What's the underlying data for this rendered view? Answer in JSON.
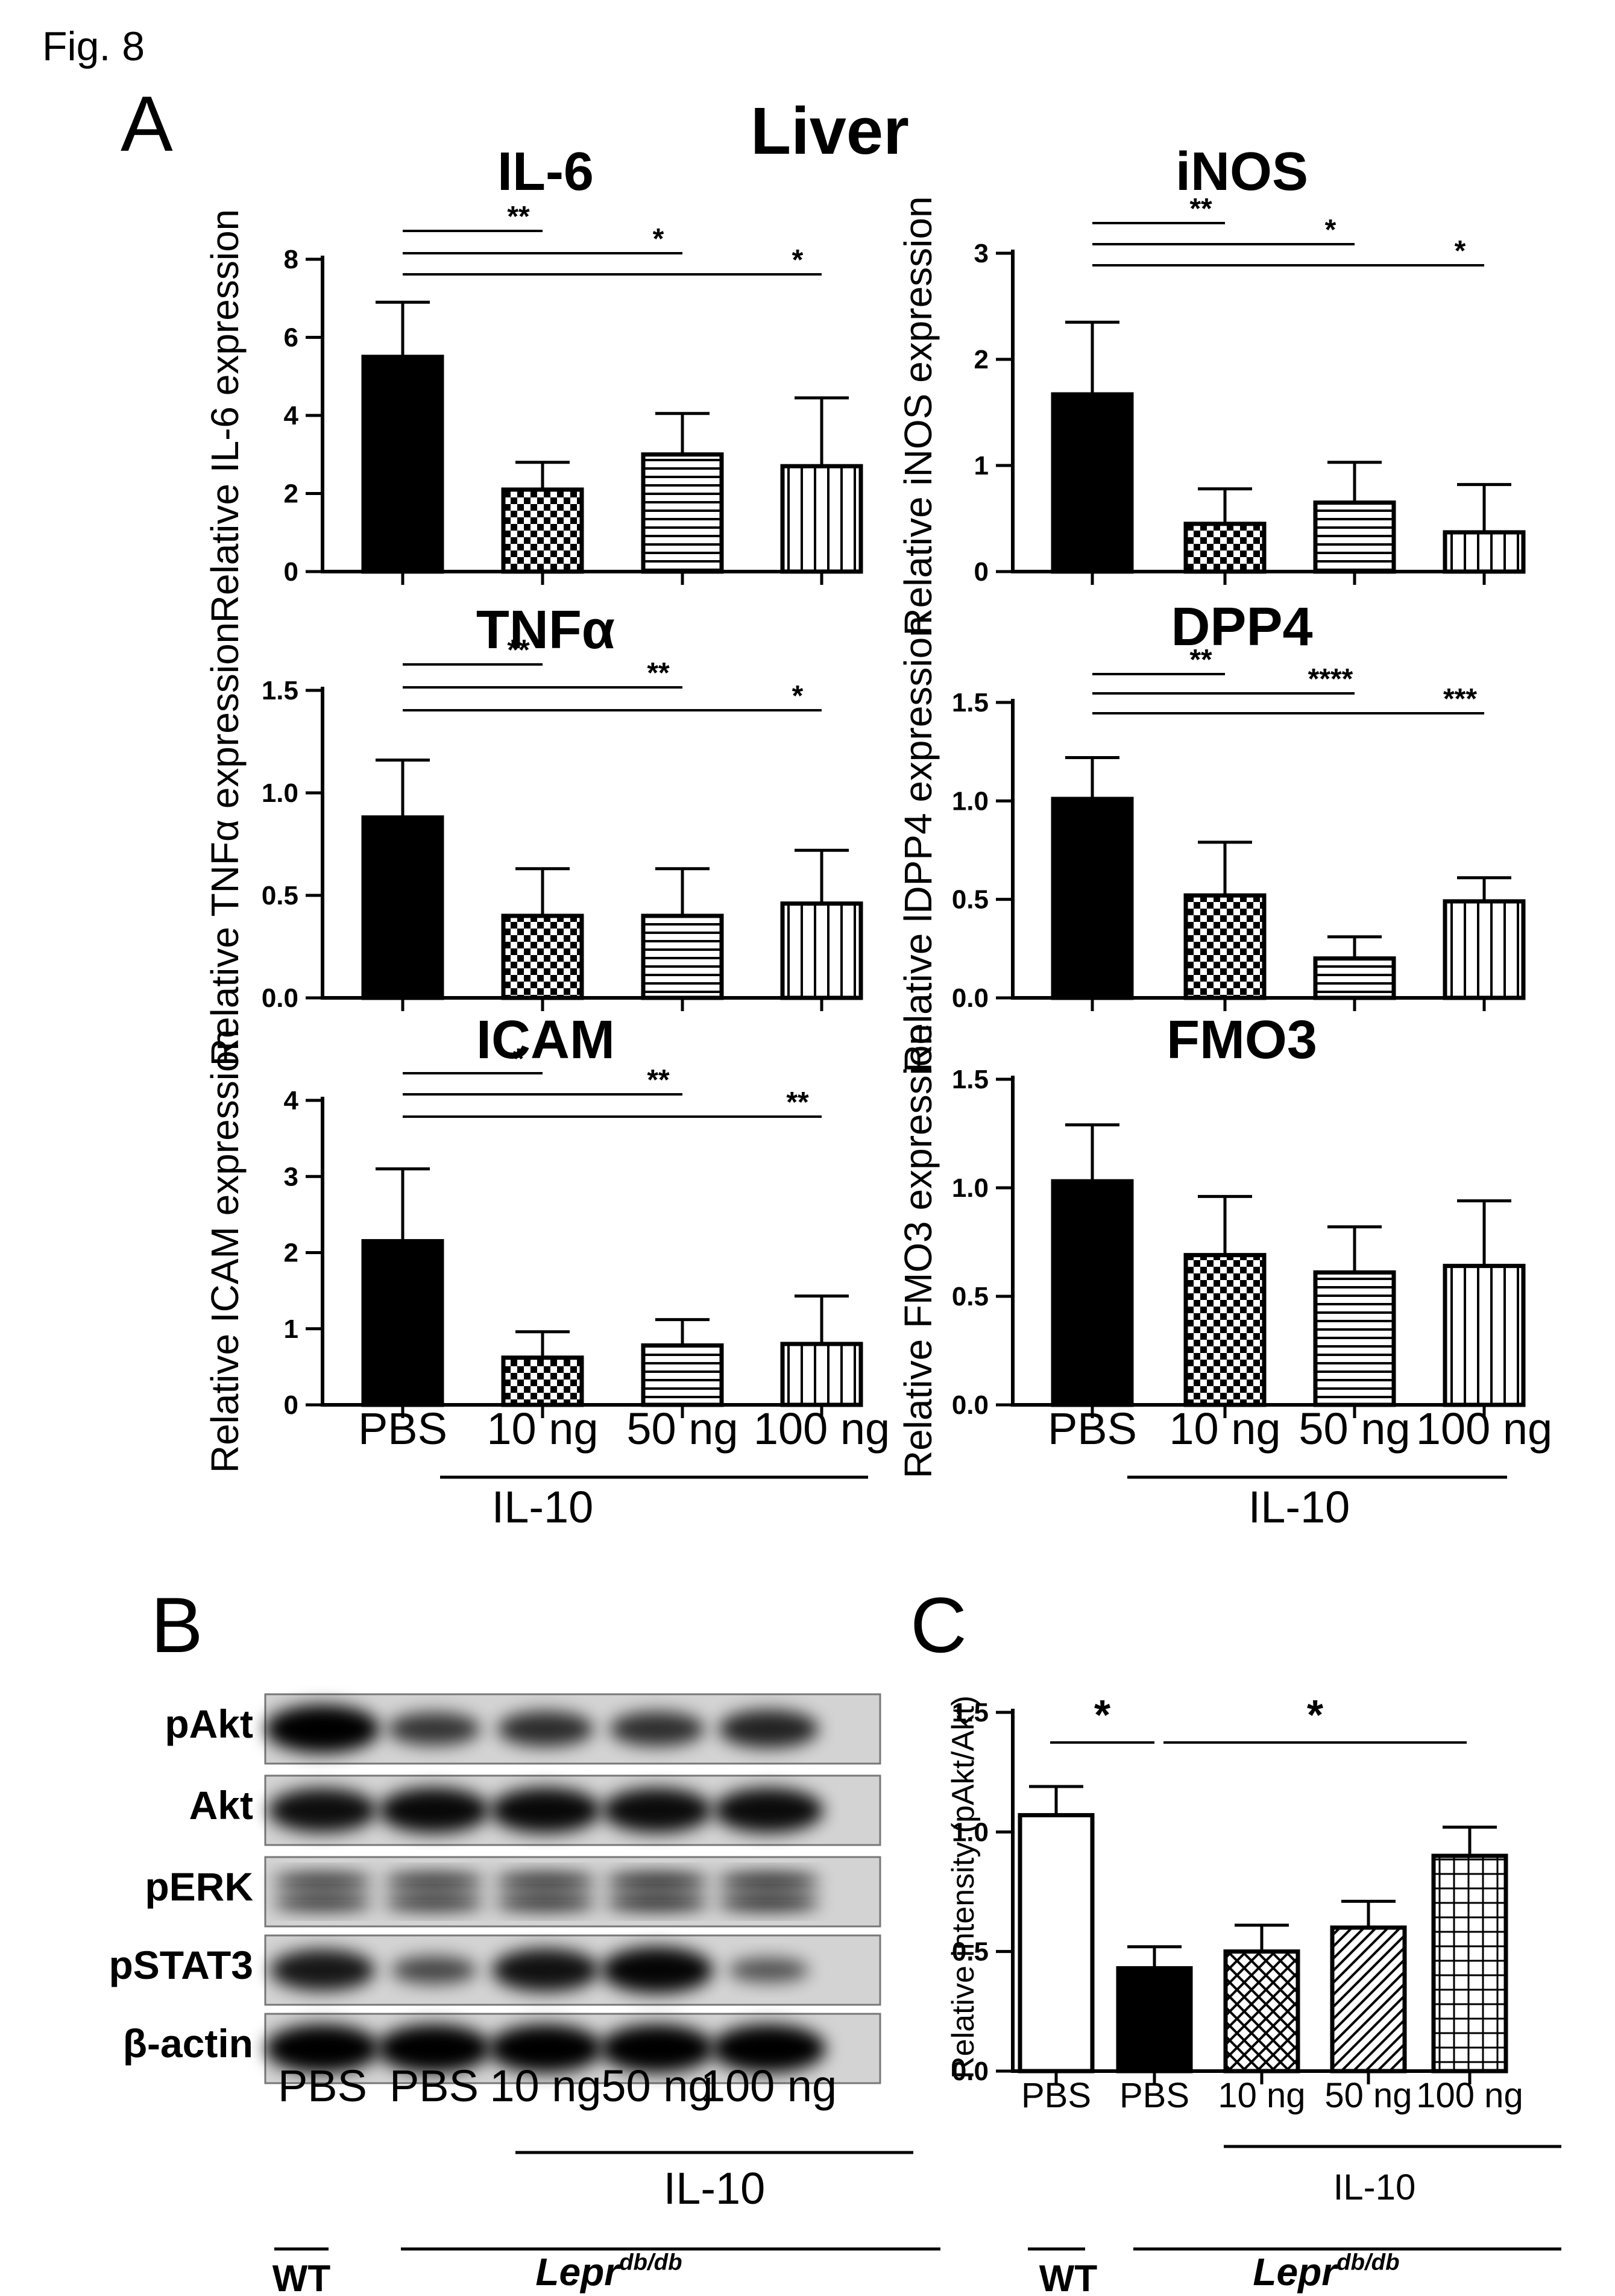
{
  "figure_label": "Fig. 8",
  "panel_labels": [
    "A",
    "B",
    "C"
  ],
  "tissue_title": "Liver",
  "chart_data": [
    {
      "type": "bar",
      "panel": "A",
      "title": "IL-6",
      "ylabel": "Relative IL-6 expression",
      "categories": [
        "PBS",
        "10 ng",
        "50 ng",
        "100 ng"
      ],
      "values": [
        5.5,
        2.1,
        3.0,
        2.7
      ],
      "errors": [
        1.4,
        0.7,
        1.05,
        1.75
      ],
      "patterns": [
        "solid",
        "checker",
        "horizontal",
        "vertical"
      ],
      "ylim": [
        0,
        8
      ],
      "yticks": [
        "0",
        "2",
        "4",
        "6",
        "8"
      ],
      "ytick_values": [
        0,
        2,
        4,
        6,
        8
      ],
      "significance": [
        {
          "from": 0,
          "to": 1,
          "label": "**"
        },
        {
          "from": 0,
          "to": 2,
          "label": "*"
        },
        {
          "from": 0,
          "to": 3,
          "label": "*"
        }
      ]
    },
    {
      "type": "bar",
      "panel": "A",
      "title": "iNOS",
      "ylabel": "Relative iNOS expression",
      "categories": [
        "PBS",
        "10 ng",
        "50 ng",
        "100 ng"
      ],
      "values": [
        1.67,
        0.45,
        0.65,
        0.37
      ],
      "errors": [
        0.68,
        0.33,
        0.38,
        0.45
      ],
      "patterns": [
        "solid",
        "checker",
        "horizontal",
        "vertical"
      ],
      "ylim": [
        0,
        3
      ],
      "yticks": [
        "0",
        "1",
        "2",
        "3"
      ],
      "ytick_values": [
        0,
        1,
        2,
        3
      ],
      "significance": [
        {
          "from": 0,
          "to": 1,
          "label": "**"
        },
        {
          "from": 0,
          "to": 2,
          "label": "*"
        },
        {
          "from": 0,
          "to": 3,
          "label": "*"
        }
      ]
    },
    {
      "type": "bar",
      "panel": "A",
      "title": "TNFα",
      "ylabel": "Relative TNFα expression",
      "categories": [
        "PBS",
        "10 ng",
        "50 ng",
        "100 ng"
      ],
      "values": [
        0.88,
        0.4,
        0.4,
        0.46
      ],
      "errors": [
        0.28,
        0.23,
        0.23,
        0.26
      ],
      "patterns": [
        "solid",
        "checker",
        "horizontal",
        "vertical"
      ],
      "ylim": [
        0,
        1.5
      ],
      "yticks": [
        "0.0",
        "0.5",
        "1.0",
        "1.5"
      ],
      "ytick_values": [
        0,
        0.5,
        1.0,
        1.5
      ],
      "significance": [
        {
          "from": 0,
          "to": 1,
          "label": "**"
        },
        {
          "from": 0,
          "to": 2,
          "label": "**"
        },
        {
          "from": 0,
          "to": 3,
          "label": "*"
        }
      ]
    },
    {
      "type": "bar",
      "panel": "A",
      "title": "DPP4",
      "ylabel": "Relative lDPP4 expression",
      "categories": [
        "PBS",
        "10 ng",
        "50 ng",
        "100 ng"
      ],
      "values": [
        1.01,
        0.52,
        0.2,
        0.49
      ],
      "errors": [
        0.21,
        0.27,
        0.11,
        0.12
      ],
      "patterns": [
        "solid",
        "checker",
        "horizontal",
        "vertical"
      ],
      "ylim": [
        0,
        1.5
      ],
      "yticks": [
        "0.0",
        "0.5",
        "1.0",
        "1.5"
      ],
      "ytick_values": [
        0,
        0.5,
        1.0,
        1.5
      ],
      "significance": [
        {
          "from": 0,
          "to": 1,
          "label": "**"
        },
        {
          "from": 0,
          "to": 2,
          "label": "****"
        },
        {
          "from": 0,
          "to": 3,
          "label": "***"
        }
      ]
    },
    {
      "type": "bar",
      "panel": "A",
      "title": "ICAM",
      "ylabel": "Relative ICAM expression",
      "categories": [
        "PBS",
        "10 ng",
        "50 ng",
        "100 ng"
      ],
      "values": [
        2.15,
        0.62,
        0.78,
        0.8
      ],
      "errors": [
        0.95,
        0.34,
        0.34,
        0.63
      ],
      "patterns": [
        "solid",
        "checker",
        "horizontal",
        "vertical"
      ],
      "ylim": [
        0,
        4
      ],
      "yticks": [
        "0",
        "1",
        "2",
        "3",
        "4"
      ],
      "ytick_values": [
        0,
        1,
        2,
        3,
        4
      ],
      "significance": [
        {
          "from": 0,
          "to": 1,
          "label": "*"
        },
        {
          "from": 0,
          "to": 2,
          "label": "**"
        },
        {
          "from": 0,
          "to": 3,
          "label": "**"
        }
      ]
    },
    {
      "type": "bar",
      "panel": "A",
      "title": "FMO3",
      "ylabel": "Relative FMO3 expression",
      "categories": [
        "PBS",
        "10 ng",
        "50 ng",
        "100 ng"
      ],
      "values": [
        1.03,
        0.69,
        0.61,
        0.64
      ],
      "errors": [
        0.26,
        0.27,
        0.21,
        0.3
      ],
      "patterns": [
        "solid",
        "checker",
        "horizontal",
        "vertical"
      ],
      "ylim": [
        0,
        1.5
      ],
      "yticks": [
        "0.0",
        "0.5",
        "1.0",
        "1.5"
      ],
      "ytick_values": [
        0,
        0.5,
        1.0,
        1.5
      ],
      "significance": []
    },
    {
      "type": "bar",
      "panel": "C",
      "title": "",
      "ylabel": "Relative intensity (pAkt/Akt)",
      "categories": [
        "PBS",
        "PBS",
        "10 ng",
        "50 ng",
        "100 ng"
      ],
      "values": [
        1.07,
        0.43,
        0.5,
        0.6,
        0.9
      ],
      "errors": [
        0.12,
        0.09,
        0.11,
        0.11,
        0.12
      ],
      "patterns": [
        "open",
        "solid",
        "crosshatch",
        "diagonal",
        "grid"
      ],
      "ylim": [
        0,
        1.5
      ],
      "yticks": [
        "0.0",
        "0.5",
        "1.0",
        "1.5"
      ],
      "ytick_values": [
        0,
        0.5,
        1.0,
        1.5
      ],
      "significance": [
        {
          "from": 0,
          "to": 1,
          "label": "*"
        },
        {
          "from": 1,
          "to": 4,
          "label": "*"
        }
      ]
    }
  ],
  "group_labels": {
    "il10": "IL-10",
    "wt": "WT",
    "lepr_base": "Lepr",
    "lepr_sup": "db/db"
  },
  "western_blot": {
    "rows": [
      "pAkt",
      "Akt",
      "pERK",
      "pSTAT3",
      "β-actin"
    ],
    "lanes": [
      "PBS",
      "PBS",
      "10 ng",
      "50 ng",
      "100 ng"
    ],
    "band_intensity": {
      "pAkt": [
        1.0,
        0.55,
        0.62,
        0.6,
        0.7
      ],
      "Akt": [
        0.88,
        0.92,
        0.92,
        0.9,
        0.9
      ],
      "pERK": [
        0.6,
        0.62,
        0.66,
        0.75,
        0.72
      ],
      "pSTAT3": [
        0.8,
        0.4,
        0.85,
        0.95,
        0.3
      ],
      "β-actin": [
        1.0,
        1.0,
        1.0,
        1.0,
        1.0
      ]
    }
  }
}
